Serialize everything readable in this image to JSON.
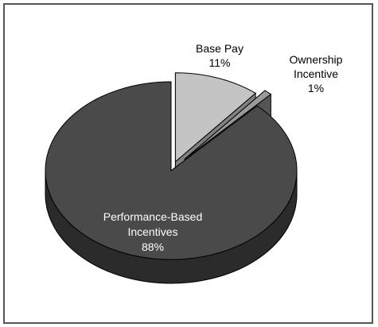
{
  "chart_data": {
    "type": "pie",
    "title": "",
    "exploded": true,
    "style": "3d",
    "slices": [
      {
        "label": "Base Pay",
        "value_label": "11%",
        "value": 11
      },
      {
        "label": "Ownership Incentive",
        "value_label": "1%",
        "value": 1
      },
      {
        "label": "Performance-Based Incentives",
        "value_label": "88%",
        "value": 88
      }
    ]
  },
  "colors": {
    "base_pay_top": "#c4c4c4",
    "base_pay_side": "#808080",
    "ownership_top": "#9a9a9a",
    "ownership_side": "#555555",
    "performance_top": "#4a4a4a",
    "performance_side": "#2b2b2b",
    "outline": "#000000"
  },
  "labels": {
    "base_pay_line1": "Base Pay",
    "base_pay_line2": "11%",
    "ownership_line1": "Ownership",
    "ownership_line2": "Incentive",
    "ownership_line3": "1%",
    "performance_line1": "Performance-Based",
    "performance_line2": "Incentives",
    "performance_line3": "88%"
  }
}
